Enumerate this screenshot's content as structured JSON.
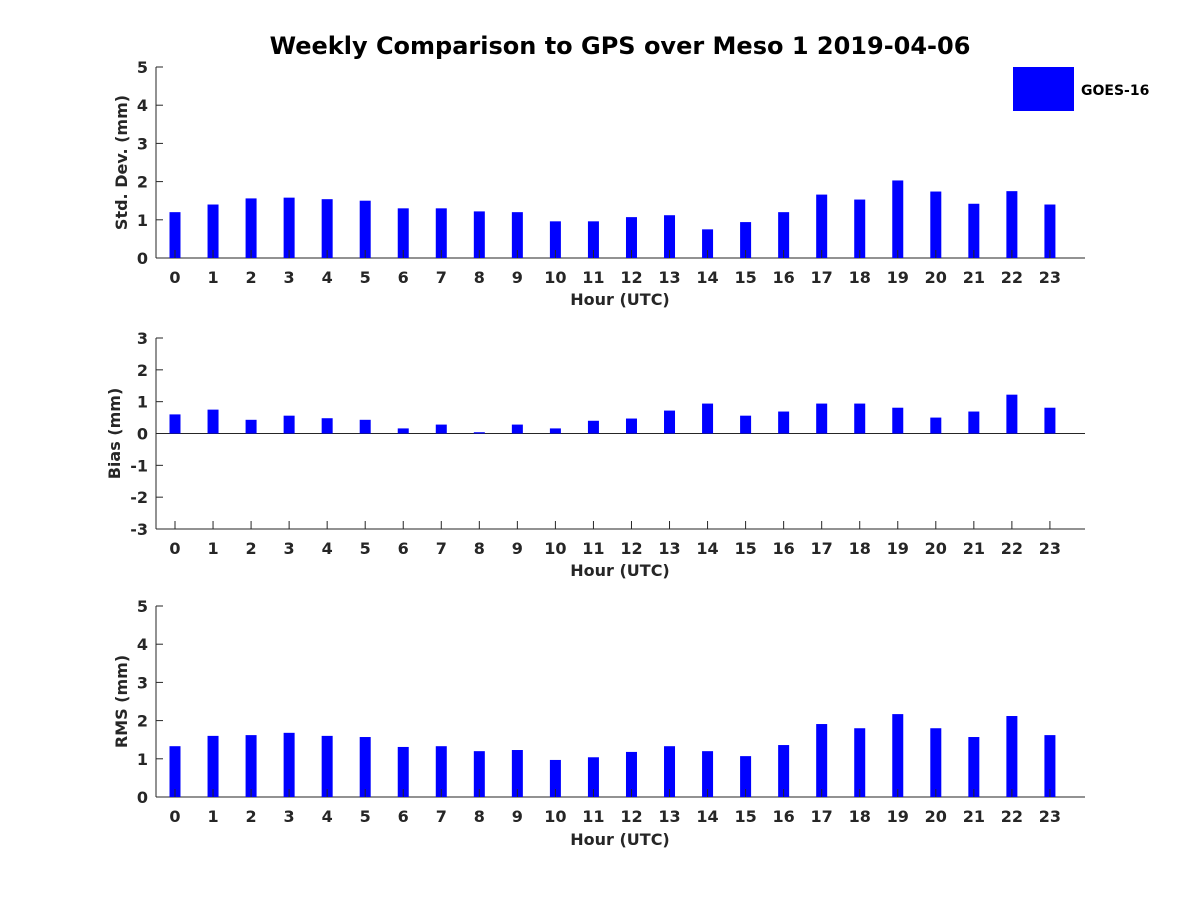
{
  "title": "Weekly Comparison to GPS over Meso 1 2019-04-06",
  "legend": {
    "label": "GOES-16",
    "color": "#0000ff"
  },
  "chart_data": [
    {
      "type": "bar",
      "name": "stddev",
      "title": "Weekly Comparison to GPS over Meso 1 2019-04-06",
      "xlabel": "Hour (UTC)",
      "ylabel": "Std. Dev. (mm)",
      "ylim": [
        0,
        5
      ],
      "yticks": [
        0,
        1,
        2,
        3,
        4,
        5
      ],
      "categories": [
        "0",
        "1",
        "2",
        "3",
        "4",
        "5",
        "6",
        "7",
        "8",
        "9",
        "10",
        "11",
        "12",
        "13",
        "14",
        "15",
        "16",
        "17",
        "18",
        "19",
        "20",
        "21",
        "22",
        "23"
      ],
      "series": [
        {
          "name": "GOES-16",
          "color": "#0000ff",
          "values": [
            1.2,
            1.4,
            1.56,
            1.58,
            1.54,
            1.5,
            1.3,
            1.3,
            1.22,
            1.2,
            0.96,
            0.96,
            1.07,
            1.12,
            0.75,
            0.94,
            1.2,
            1.66,
            1.53,
            2.03,
            1.74,
            1.42,
            1.75,
            1.4
          ]
        }
      ]
    },
    {
      "type": "bar",
      "name": "bias",
      "xlabel": "Hour (UTC)",
      "ylabel": "Bias (mm)",
      "ylim": [
        -3,
        3
      ],
      "yticks": [
        -3,
        -2,
        -1,
        0,
        1,
        2,
        3
      ],
      "categories": [
        "0",
        "1",
        "2",
        "3",
        "4",
        "5",
        "6",
        "7",
        "8",
        "9",
        "10",
        "11",
        "12",
        "13",
        "14",
        "15",
        "16",
        "17",
        "18",
        "19",
        "20",
        "21",
        "22",
        "23"
      ],
      "series": [
        {
          "name": "GOES-16",
          "color": "#0000ff",
          "values": [
            0.6,
            0.75,
            0.43,
            0.56,
            0.48,
            0.43,
            0.16,
            0.28,
            0.04,
            0.28,
            0.16,
            0.4,
            0.47,
            0.72,
            0.94,
            0.56,
            0.69,
            0.94,
            0.94,
            0.81,
            0.5,
            0.69,
            1.22,
            0.81
          ]
        }
      ]
    },
    {
      "type": "bar",
      "name": "rms",
      "xlabel": "Hour (UTC)",
      "ylabel": "RMS (mm)",
      "ylim": [
        0,
        5
      ],
      "yticks": [
        0,
        1,
        2,
        3,
        4,
        5
      ],
      "categories": [
        "0",
        "1",
        "2",
        "3",
        "4",
        "5",
        "6",
        "7",
        "8",
        "9",
        "10",
        "11",
        "12",
        "13",
        "14",
        "15",
        "16",
        "17",
        "18",
        "19",
        "20",
        "21",
        "22",
        "23"
      ],
      "series": [
        {
          "name": "GOES-16",
          "color": "#0000ff",
          "values": [
            1.33,
            1.6,
            1.62,
            1.68,
            1.6,
            1.57,
            1.31,
            1.33,
            1.2,
            1.23,
            0.97,
            1.04,
            1.18,
            1.33,
            1.2,
            1.07,
            1.36,
            1.91,
            1.8,
            2.17,
            1.8,
            1.57,
            2.12,
            1.62
          ]
        }
      ]
    }
  ]
}
